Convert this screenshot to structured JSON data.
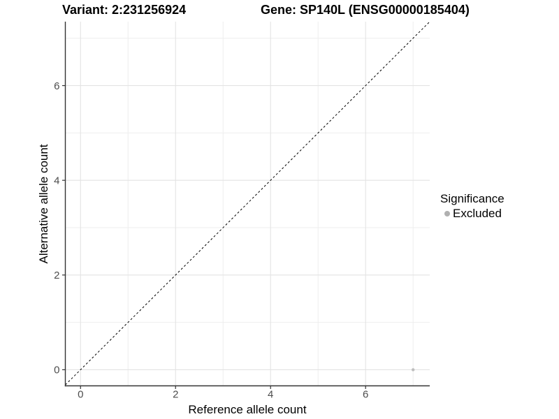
{
  "chart_data": {
    "type": "scatter",
    "title_left": "Variant: 2:231256924",
    "title_right": "Gene: SP140L (ENSG00000185404)",
    "xlabel": "Reference allele count",
    "ylabel": "Alternative allele count",
    "xlim": [
      -0.32,
      7.35
    ],
    "ylim": [
      -0.34,
      7.35
    ],
    "xticks": [
      0,
      2,
      4,
      6
    ],
    "yticks": [
      0,
      2,
      4,
      6
    ],
    "minor_xticks": [
      1,
      3,
      5,
      7
    ],
    "minor_yticks": [
      1,
      3,
      5,
      7
    ],
    "grid": "major+minor",
    "points": [
      {
        "x": 7,
        "y": 0,
        "series": "Excluded"
      }
    ],
    "reference_line": {
      "kind": "identity y=x",
      "style": "dashed",
      "color": "#000000"
    },
    "legend": {
      "title": "Significance",
      "position": "right",
      "items": [
        {
          "label": "Excluded",
          "color": "#b0b0b0"
        }
      ]
    },
    "colors": {
      "background": "#ffffff",
      "axis": "#333333",
      "tick_text": "#4d4d4d",
      "grid_major": "#e3e3e3",
      "grid_minor": "#eeeeee",
      "point": "#bdbdbd"
    }
  }
}
